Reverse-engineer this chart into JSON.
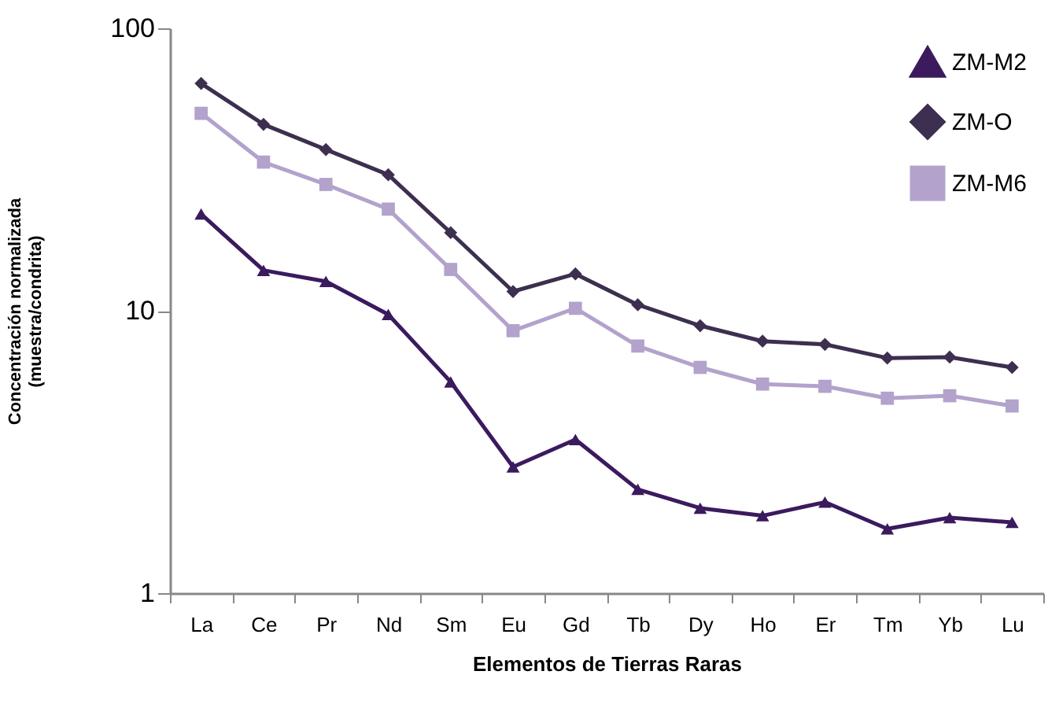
{
  "chart_data": {
    "type": "line",
    "xlabel": "Elementos de Tierras Raras",
    "ylabel": "Concentración normalizada\n(muestra/condrita)",
    "categories": [
      "La",
      "Ce",
      "Pr",
      "Nd",
      "Sm",
      "Eu",
      "Gd",
      "Tb",
      "Dy",
      "Ho",
      "Er",
      "Tm",
      "Yb",
      "Lu"
    ],
    "log": true,
    "ylim": [
      1,
      100
    ],
    "yticks": [
      1,
      10,
      100
    ],
    "grid": false,
    "legend": "top right",
    "line_style": "solid",
    "series": [
      {
        "name": "ZM-M2",
        "color": "#3b1a5e",
        "marker": "triangle",
        "values": [
          22,
          13.9,
          12.7,
          9.7,
          5.6,
          2.8,
          3.5,
          2.33,
          2.0,
          1.88,
          2.1,
          1.69,
          1.85,
          1.78
        ]
      },
      {
        "name": "ZM-O",
        "color": "#3d2f4f",
        "marker": "diamond",
        "values": [
          63.8,
          45.7,
          37.2,
          30.3,
          18.9,
          11.7,
          13.5,
          10.5,
          8.85,
          7.8,
          7.6,
          6.8,
          6.85,
          6.3
        ]
      },
      {
        "name": "ZM-M6",
        "color": "#b3a2cc",
        "marker": "square",
        "values": [
          50,
          33.6,
          28,
          22.9,
          14,
          8.5,
          10.2,
          7.5,
          6.3,
          5.5,
          5.4,
          4.9,
          5.0,
          4.6
        ]
      }
    ]
  }
}
